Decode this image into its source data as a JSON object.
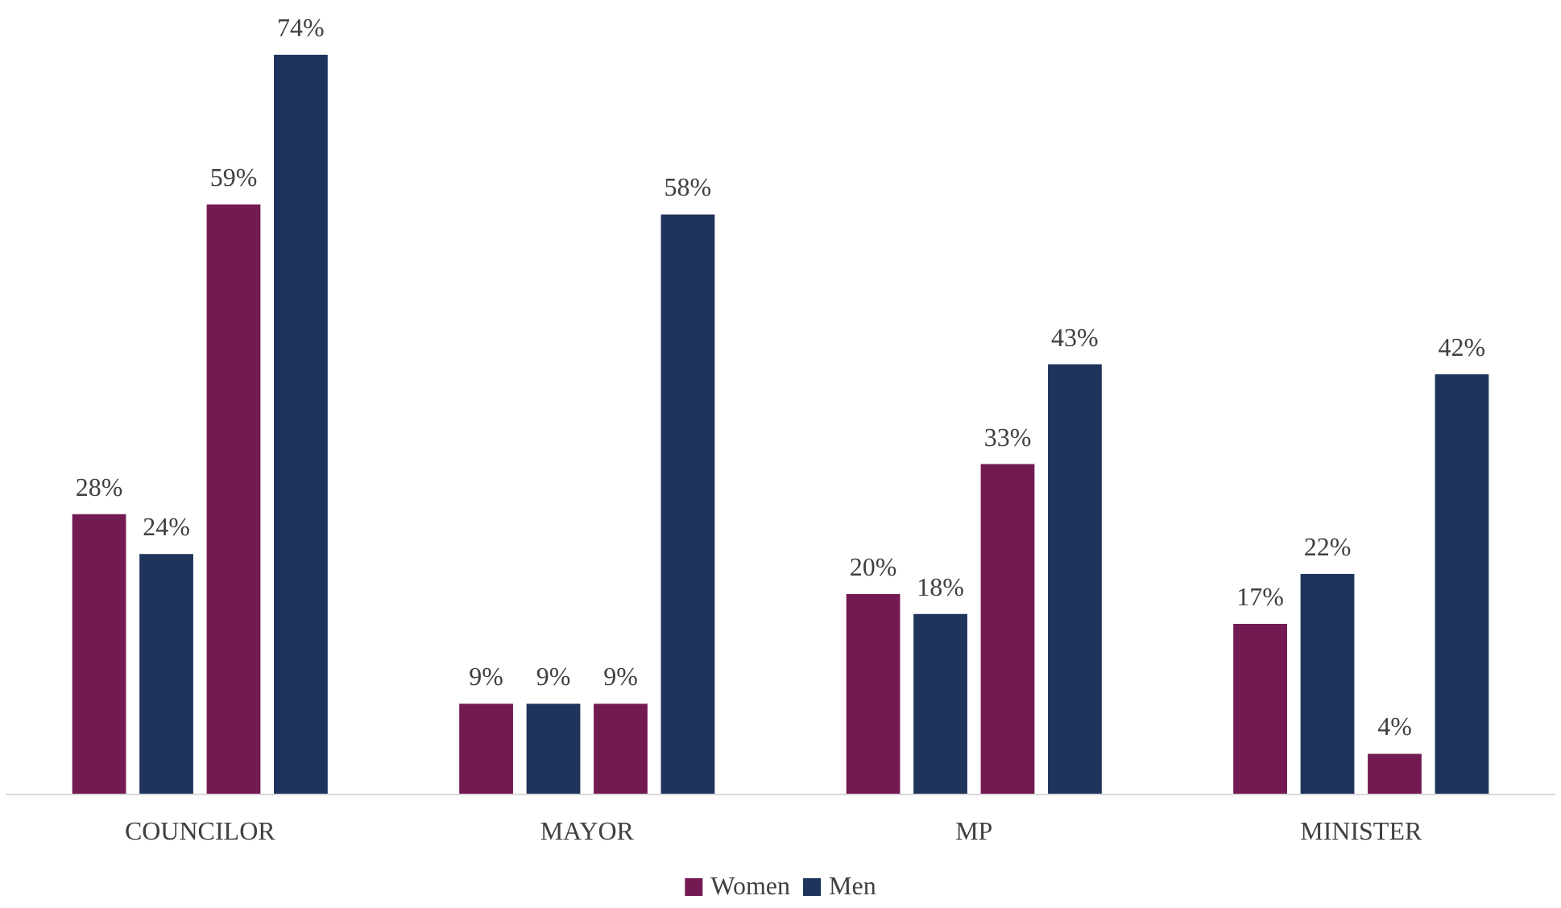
{
  "chart_data": {
    "type": "bar",
    "categories": [
      "COUNCILOR",
      "MAYOR",
      "MP",
      "MINISTER"
    ],
    "series": [
      {
        "name": "Women",
        "color": "#731a53",
        "values": [
          28,
          9,
          20,
          17
        ],
        "value_labels": [
          "28%",
          "9%",
          "20%",
          "17%"
        ]
      },
      {
        "name": "Men",
        "color": "#1f345c",
        "values": [
          24,
          9,
          18,
          22
        ],
        "value_labels": [
          "24%",
          "9%",
          "18%",
          "22%"
        ]
      },
      {
        "color": "#731a53",
        "values": [
          59,
          9,
          33,
          4
        ],
        "value_labels": [
          "59%",
          "9%",
          "33%",
          "4%"
        ]
      },
      {
        "color": "#1f345c",
        "values": [
          74,
          58,
          43,
          42
        ],
        "value_labels": [
          "74%",
          "58%",
          "43%",
          "42%"
        ]
      }
    ],
    "legend": "bottom"
  }
}
